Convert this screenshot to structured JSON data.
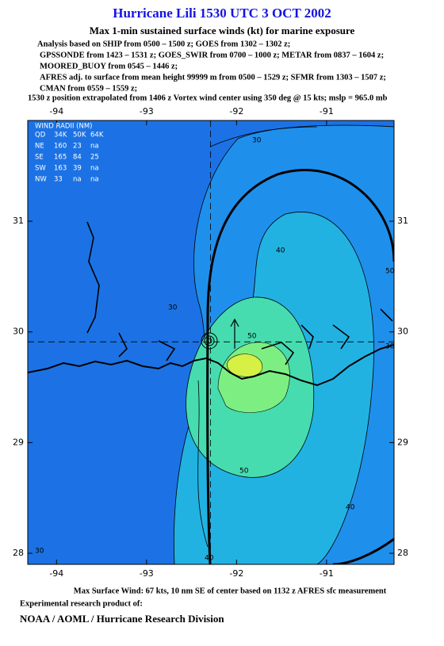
{
  "header": {
    "title": "Hurricane Lili 1530 UTC 3 OCT 2002",
    "subtitle": "Max 1-min sustained surface winds (kt) for marine exposure",
    "analysis_lines": [
      "Analysis based on  SHIP from 0500 – 1500 z;  GOES from 1302 – 1302 z;",
      "GPSSONDE from 1423 – 1531 z;  GOES_SWIR from 0700 – 1000 z;  METAR from 0837 – 1604 z;",
      "MOORED_BUOY from 0545 – 1446 z;",
      "AFRES adj. to surface from mean height 99999 m from 0500 – 1529 z;  SFMR from 1303 – 1507 z;",
      "CMAN from 0559 – 1559 z;",
      "1530 z position extrapolated from 1406 z Vortex wind center using 350 deg @ 15 kts; mslp = 965.0 mb"
    ]
  },
  "map": {
    "lon_range": [
      -94.32,
      -90.25
    ],
    "lat_range": [
      27.9,
      31.91
    ],
    "lon_ticks": [
      -94,
      -93,
      -92,
      -91
    ],
    "lat_ticks": [
      31,
      30,
      29,
      28
    ],
    "center": {
      "lon": -92.29,
      "lat": 29.91
    },
    "wind_radii": {
      "title": "WIND RADII (NM)",
      "header": [
        "QD",
        "34K",
        "50K",
        "64K"
      ],
      "rows": [
        [
          "NE",
          "160",
          "23",
          "na"
        ],
        [
          "SE",
          "165",
          "84",
          "25"
        ],
        [
          "SW",
          "163",
          "39",
          "na"
        ],
        [
          "NW",
          "33",
          "na",
          "na"
        ]
      ]
    },
    "contour_labels": [
      30,
      30,
      40,
      50,
      30,
      50,
      40,
      40,
      30,
      50
    ]
  },
  "footer": {
    "max_wind": "Max Surface Wind: 67 kts, 10 nm SE of center based on 1132 z AFRES sfc measurement",
    "product_line": "Experimental research product of:",
    "organization": "NOAA / AOML / Hurricane Research Division"
  }
}
